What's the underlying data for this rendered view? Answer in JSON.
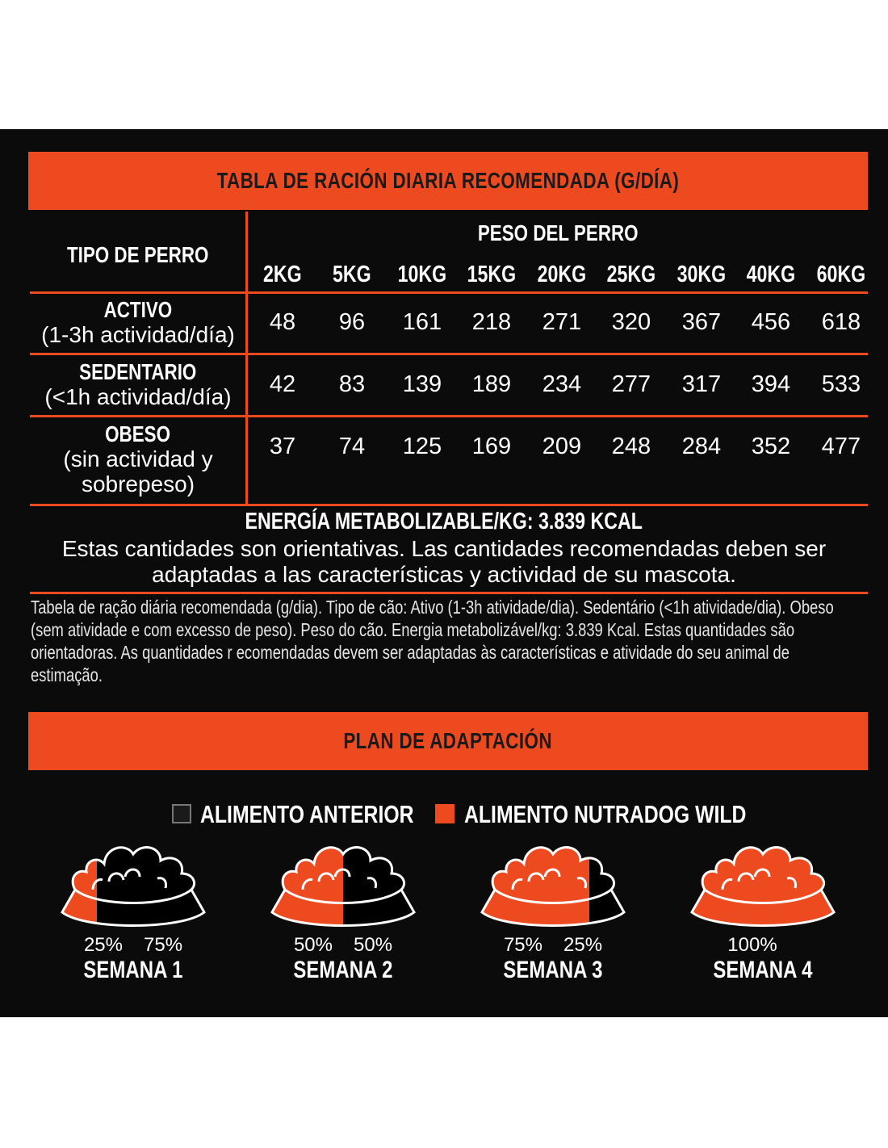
{
  "table_banner": "TABLA DE RACIÓN DIARIA RECOMENDADA (G/DÍA)",
  "col_header_type": "TIPO DE PERRO",
  "col_header_weight": "PESO DEL PERRO",
  "weights": [
    "2KG",
    "5KG",
    "10KG",
    "15KG",
    "20KG",
    "25KG",
    "30KG",
    "40KG",
    "60KG"
  ],
  "rows": [
    {
      "name": "ACTIVO",
      "desc": "(1-3h actividad/día)",
      "values": [
        "48",
        "96",
        "161",
        "218",
        "271",
        "320",
        "367",
        "456",
        "618"
      ]
    },
    {
      "name": "SEDENTARIO",
      "desc": "(<1h actividad/día)",
      "values": [
        "42",
        "83",
        "139",
        "189",
        "234",
        "277",
        "317",
        "394",
        "533"
      ]
    },
    {
      "name": "OBESO",
      "desc": "(sin actividad y sobrepeso)",
      "values": [
        "37",
        "74",
        "125",
        "169",
        "209",
        "248",
        "284",
        "352",
        "477"
      ]
    }
  ],
  "energy": "ENERGÍA METABOLIZABLE/KG: 3.839 KCAL",
  "disclaimer_line1": "Estas cantidades son orientativas. Las cantidades recomendadas deben ser",
  "disclaimer_line2": "adaptadas a las características y actividad de su mascota.",
  "portuguese_note": "Tabela de ração diária recomendada (g/dia). Tipo de cão: Ativo (1-3h atividade/dia). Sedentário (<1h atividade/dia). Obeso (sem atividade e com excesso de peso). Peso do cão. Energia metabolizável/kg: 3.839 Kcal. Estas quantidades são orientadoras. As quantidades r  ecomendadas devem ser adaptadas às características e atividade do seu animal de estimação.",
  "plan_banner": "PLAN DE ADAPTACIÓN",
  "legend": {
    "previous": "ALIMENTO ANTERIOR",
    "new": "ALIMENTO NUTRADOG WILD"
  },
  "weeks": [
    {
      "label": "SEMANA 1",
      "new_pct": "25%",
      "old_pct": "75%",
      "new_fraction": 0.25
    },
    {
      "label": "SEMANA 2",
      "new_pct": "50%",
      "old_pct": "50%",
      "new_fraction": 0.5
    },
    {
      "label": "SEMANA 3",
      "new_pct": "75%",
      "old_pct": "25%",
      "new_fraction": 0.75
    },
    {
      "label": "SEMANA 4",
      "new_pct": "100%",
      "old_pct": "",
      "new_fraction": 1.0
    }
  ],
  "colors": {
    "accent": "#ee4a1f",
    "background": "#0b0b0b",
    "text": "#ffffff"
  }
}
